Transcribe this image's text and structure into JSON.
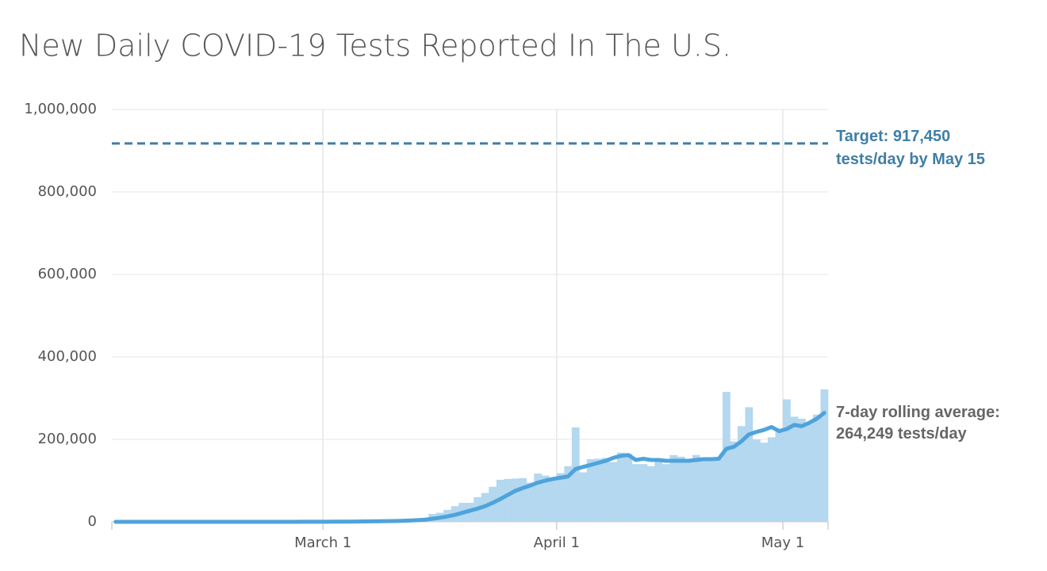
{
  "chart_data": {
    "type": "bar",
    "title": "New Daily COVID-19 Tests Reported In The U.S.",
    "categories": [
      null,
      null,
      null,
      null,
      null,
      null,
      null,
      null,
      null,
      null,
      null,
      null,
      null,
      null,
      null,
      null,
      null,
      null,
      null,
      null,
      null,
      null,
      null,
      null,
      null,
      null,
      null,
      null,
      "March 1",
      null,
      null,
      null,
      null,
      null,
      null,
      null,
      null,
      null,
      null,
      null,
      null,
      null,
      null,
      null,
      null,
      null,
      null,
      null,
      null,
      null,
      null,
      null,
      null,
      null,
      null,
      null,
      null,
      null,
      null,
      "April 1",
      null,
      null,
      null,
      null,
      null,
      null,
      null,
      null,
      null,
      null,
      null,
      null,
      null,
      null,
      null,
      null,
      null,
      null,
      null,
      null,
      null,
      null,
      null,
      null,
      null,
      null,
      null,
      null,
      null,
      "May 1",
      null,
      null,
      null,
      null,
      null
    ],
    "series": [
      {
        "type": "bar",
        "color": "#b3d8ef",
        "values": [
          0,
          0,
          0,
          0,
          0,
          0,
          0,
          0,
          0,
          0,
          0,
          0,
          0,
          0,
          0,
          0,
          0,
          0,
          0,
          0,
          0,
          0,
          0,
          100,
          200,
          300,
          300,
          400,
          500,
          700,
          800,
          1000,
          1200,
          1500,
          1800,
          2000,
          2500,
          3000,
          4000,
          5000,
          6000,
          8000,
          19000,
          22000,
          29000,
          38000,
          46000,
          46000,
          60000,
          70000,
          85000,
          102000,
          104000,
          105000,
          106000,
          95000,
          117000,
          112000,
          104000,
          118000,
          135000,
          229000,
          120000,
          152000,
          153000,
          155000,
          145000,
          168000,
          165000,
          140000,
          140000,
          135000,
          145000,
          140000,
          162000,
          158000,
          150000,
          162000,
          150000,
          150000,
          155000,
          315000,
          195000,
          232000,
          278000,
          200000,
          192000,
          205000,
          225000,
          297000,
          255000,
          250000,
          238000,
          260000,
          321000
        ]
      },
      {
        "type": "line",
        "color": "#4fa3dc",
        "values": [
          0,
          0,
          0,
          0,
          0,
          0,
          0,
          0,
          0,
          0,
          0,
          0,
          0,
          0,
          0,
          0,
          0,
          0,
          0,
          0,
          0,
          0,
          0,
          0,
          100,
          150,
          200,
          250,
          300,
          400,
          500,
          600,
          800,
          1000,
          1200,
          1400,
          1700,
          2000,
          2500,
          3200,
          4000,
          5000,
          7500,
          10000,
          13000,
          17000,
          22000,
          27000,
          32000,
          38000,
          46000,
          55000,
          65000,
          75000,
          82000,
          88000,
          95000,
          100000,
          104000,
          107000,
          110000,
          128000,
          133000,
          138000,
          143000,
          148000,
          155000,
          160000,
          162000,
          150000,
          153000,
          150000,
          150000,
          148000,
          148000,
          148000,
          148000,
          150000,
          152000,
          152000,
          153000,
          177000,
          182000,
          195000,
          212000,
          218000,
          223000,
          230000,
          220000,
          225000,
          235000,
          232000,
          240000,
          250000,
          264249
        ]
      }
    ],
    "ylim": [
      0,
      1000000
    ],
    "yticks": [
      0,
      {
        "value": 200000,
        "label": "200,000"
      },
      {
        "value": 400000,
        "label": "400,000"
      },
      {
        "value": 600000,
        "label": "600,000"
      },
      {
        "value": 800000,
        "label": "800,000"
      },
      {
        "value": 1000000,
        "label": "1,000,000"
      }
    ],
    "grid": true,
    "target": {
      "value": 917450,
      "color": "#3f7ea6",
      "text": [
        "Target: 917,450",
        "tests/day by May 15"
      ]
    },
    "average_note": {
      "color": "#666666",
      "text": [
        "7-day rolling average:",
        "264,249 tests/day"
      ]
    }
  }
}
